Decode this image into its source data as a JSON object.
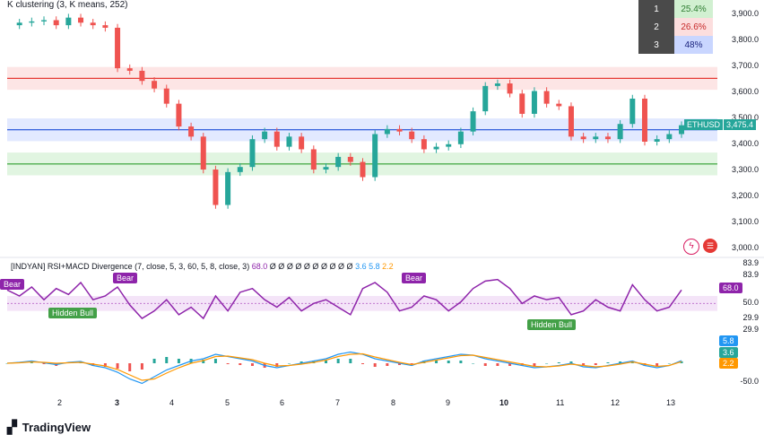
{
  "main_pane": {
    "title": "K clustering (3, K means, 252)",
    "price_label": "ETHUSD",
    "price_value": "3,475.4",
    "y_ticks": [
      "3,900.0",
      "3,800.0",
      "3,700.0",
      "3,600.0",
      "3,500.0",
      "3,400.0",
      "3,300.0",
      "3,200.0",
      "3,100.0",
      "3,000.0"
    ],
    "clusters": [
      {
        "index": "1",
        "percent": "25.4%",
        "color": "#d1f0d1",
        "text_color": "#2e7d32"
      },
      {
        "index": "2",
        "percent": "26.6%",
        "color": "#fcdede",
        "text_color": "#c62828"
      },
      {
        "index": "3",
        "percent": "48%",
        "color": "#c9d6ff",
        "text_color": "#1a237e"
      }
    ]
  },
  "indicator_pane": {
    "title": "[INDYAN] RSI+MACD Divergence (7, close, 5, 3, 60, 5, 8, close, 3)",
    "values_text": [
      "68.0",
      "Ø",
      "Ø",
      "Ø",
      "Ø",
      "Ø",
      "Ø",
      "Ø",
      "Ø",
      "Ø",
      "Ø",
      "3.6",
      "5.8",
      "2.2"
    ],
    "y_ticks": [
      "83.9",
      "83.9",
      "50.0",
      "29.9",
      "29.9",
      "-50.0"
    ],
    "rsi_label": "68.0",
    "macd_labels": [
      "5.8",
      "3.6",
      "2.2"
    ],
    "tags": [
      {
        "text": "Bear",
        "kind": "bear"
      },
      {
        "text": "Bear",
        "kind": "bear"
      },
      {
        "text": "Bear",
        "kind": "bear"
      },
      {
        "text": "Hidden Bull",
        "kind": "bull"
      },
      {
        "text": "Hidden Bull",
        "kind": "bull"
      }
    ]
  },
  "x_ticks": [
    "2",
    "3",
    "4",
    "5",
    "6",
    "7",
    "8",
    "9",
    "10",
    "11",
    "12",
    "13"
  ],
  "brand": "TradingView",
  "chart_data": [
    {
      "type": "line",
      "title": "K clustering (3, K means, 252)",
      "series": [
        {
          "name": "ETHUSD",
          "values": [
            3870,
            3880,
            3885,
            3890,
            3870,
            3900,
            3880,
            3870,
            3860,
            3700,
            3690,
            3650,
            3620,
            3560,
            3470,
            3430,
            3300,
            3160,
            3290,
            3310,
            3420,
            3450,
            3390,
            3430,
            3380,
            3300,
            3310,
            3350,
            3330,
            3270,
            3440,
            3460,
            3450,
            3420,
            3380,
            3390,
            3400,
            3450,
            3530,
            3630,
            3640,
            3600,
            3520,
            3610,
            3560,
            3550,
            3430,
            3420,
            3430,
            3420,
            3480,
            3580,
            3410,
            3420,
            3440,
            3475
          ]
        }
      ],
      "cluster_levels": [
        {
          "value": 3660,
          "color": "#e53935"
        },
        {
          "value": 3457,
          "color": "#1e4fd8"
        },
        {
          "value": 3322,
          "color": "#2e9e2e"
        }
      ],
      "ylim": [
        2960,
        3920
      ],
      "last_price": 3475.4
    },
    {
      "type": "line",
      "title": "[INDYAN] RSI+MACD Divergence (7, close, 5, 3, 60, 5, 8, close, 3)",
      "series": [
        {
          "name": "RSI",
          "values": [
            68,
            60,
            72,
            55,
            70,
            62,
            78,
            55,
            60,
            72,
            48,
            30,
            40,
            55,
            35,
            45,
            30,
            60,
            40,
            65,
            70,
            55,
            45,
            58,
            40,
            50,
            55,
            45,
            35,
            70,
            78,
            65,
            40,
            45,
            60,
            55,
            40,
            52,
            70,
            80,
            82,
            70,
            50,
            60,
            55,
            58,
            35,
            40,
            55,
            45,
            40,
            75,
            55,
            40,
            45,
            68
          ]
        },
        {
          "name": "MACD",
          "values": [
            0,
            2,
            5,
            1,
            -3,
            2,
            4,
            -5,
            -10,
            -20,
            -35,
            -45,
            -30,
            -15,
            -5,
            5,
            10,
            20,
            15,
            10,
            5,
            -5,
            -10,
            -5,
            0,
            5,
            10,
            20,
            25,
            20,
            10,
            5,
            0,
            -5,
            5,
            10,
            15,
            20,
            18,
            10,
            5,
            0,
            -5,
            -10,
            -8,
            -5,
            0,
            -8,
            -10,
            -5,
            0,
            5,
            -5,
            -10,
            -5,
            5.8
          ]
        },
        {
          "name": "Signal",
          "values": [
            0,
            1,
            3,
            2,
            0,
            1,
            2,
            -2,
            -6,
            -14,
            -26,
            -38,
            -35,
            -22,
            -10,
            0,
            6,
            15,
            16,
            12,
            8,
            0,
            -6,
            -5,
            -2,
            2,
            7,
            15,
            20,
            21,
            14,
            8,
            2,
            -3,
            2,
            7,
            12,
            17,
            18,
            13,
            8,
            3,
            -2,
            -7,
            -8,
            -6,
            -2,
            -5,
            -8,
            -6,
            -2,
            3,
            -2,
            -7,
            -5,
            3.6
          ]
        }
      ],
      "ylim": [
        -60,
        90
      ]
    }
  ]
}
